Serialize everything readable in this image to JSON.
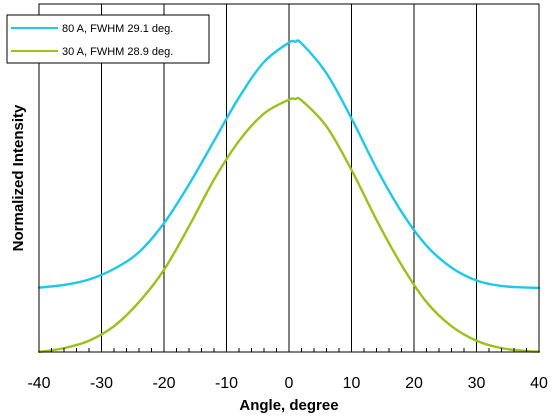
{
  "chart_data": {
    "type": "line",
    "title": "",
    "xlabel": "Angle, degree",
    "ylabel": "Normalized Intensity",
    "xlim": [
      -40,
      40
    ],
    "ylim": [
      0,
      1.08
    ],
    "x_ticks": [
      "-40",
      "-30",
      "-20",
      "-10",
      "0",
      "10",
      "20",
      "30",
      "40"
    ],
    "grid": "vertical lines at major x ticks",
    "minor_ticks": "every 2 degrees on x axis",
    "legend_position": "top-left",
    "series": [
      {
        "name": "80 A, FWHM 29.1 deg.",
        "color": "#1ec8e6",
        "x": [
          -40,
          -36,
          -32,
          -28,
          -24,
          -20,
          -16,
          -12,
          -8,
          -4,
          0,
          1,
          2,
          6,
          10,
          14,
          18,
          22,
          26,
          30,
          34,
          38,
          40
        ],
        "y": [
          0.2,
          0.208,
          0.225,
          0.258,
          0.31,
          0.4,
          0.52,
          0.655,
          0.79,
          0.9,
          0.96,
          0.963,
          0.958,
          0.865,
          0.725,
          0.57,
          0.435,
          0.33,
          0.262,
          0.222,
          0.205,
          0.2,
          0.199
        ]
      },
      {
        "name": "30 A, FWHM 28.9 deg.",
        "color": "#99c21c",
        "x": [
          -40,
          -36,
          -32,
          -28,
          -24,
          -20,
          -16,
          -12,
          -8,
          -4,
          0,
          1,
          2,
          6,
          10,
          14,
          18,
          22,
          26,
          30,
          34,
          38,
          40
        ],
        "y": [
          0.0,
          0.012,
          0.035,
          0.08,
          0.155,
          0.255,
          0.39,
          0.535,
          0.655,
          0.74,
          0.783,
          0.785,
          0.781,
          0.7,
          0.565,
          0.41,
          0.27,
          0.155,
          0.08,
          0.035,
          0.012,
          0.003,
          0.001
        ]
      }
    ]
  }
}
